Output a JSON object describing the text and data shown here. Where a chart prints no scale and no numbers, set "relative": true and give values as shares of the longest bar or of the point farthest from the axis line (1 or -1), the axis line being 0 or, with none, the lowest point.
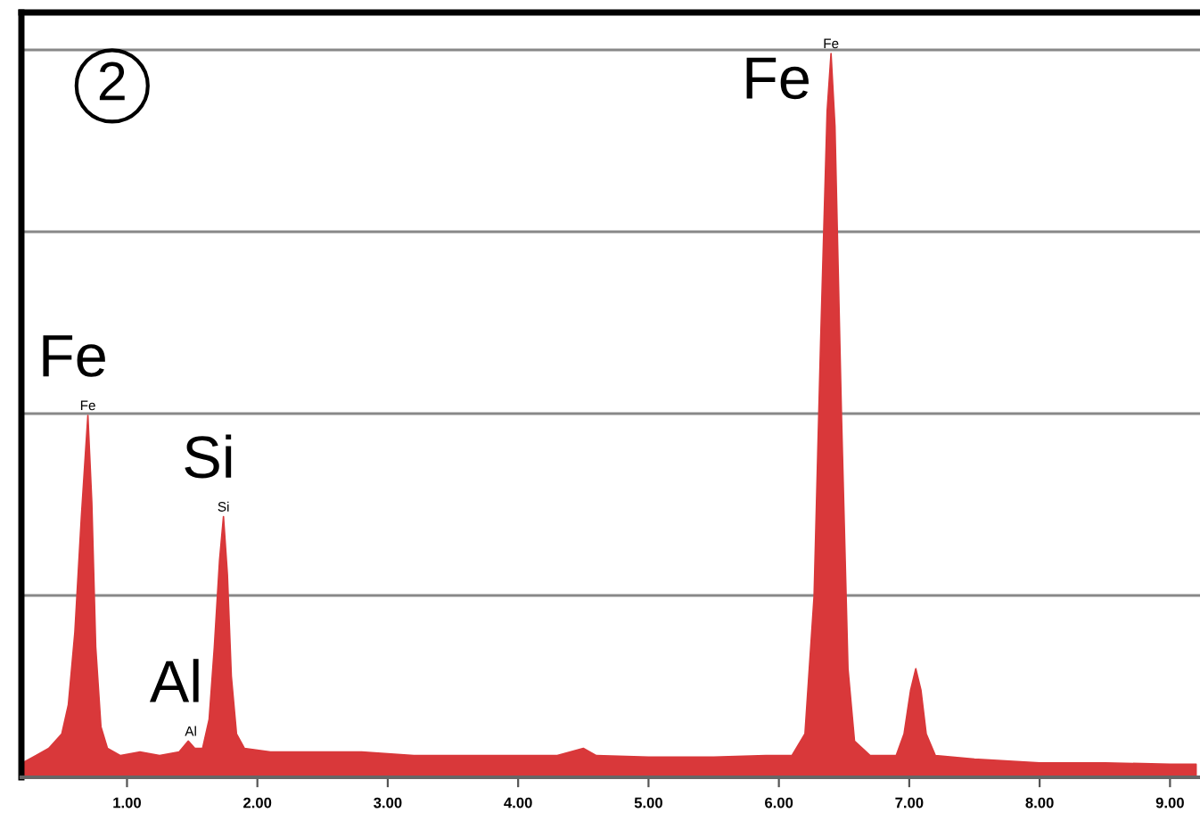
{
  "chart_data": {
    "type": "area",
    "relative": true,
    "color": "#d9383a",
    "grid": "y",
    "x": [
      0.2,
      0.3,
      0.4,
      0.5,
      0.55,
      0.6,
      0.65,
      0.7,
      0.73,
      0.76,
      0.8,
      0.85,
      0.95,
      1.1,
      1.25,
      1.4,
      1.47,
      1.52,
      1.58,
      1.63,
      1.67,
      1.71,
      1.74,
      1.77,
      1.8,
      1.84,
      1.9,
      2.1,
      2.4,
      2.8,
      3.2,
      3.6,
      4.0,
      4.3,
      4.5,
      4.6,
      5.0,
      5.5,
      5.9,
      6.1,
      6.2,
      6.27,
      6.32,
      6.37,
      6.4,
      6.43,
      6.48,
      6.53,
      6.58,
      6.7,
      6.9,
      6.96,
      7.01,
      7.05,
      7.09,
      7.13,
      7.2,
      7.5,
      8.0,
      8.5,
      9.0,
      9.2
    ],
    "values": [
      0.02,
      0.03,
      0.04,
      0.06,
      0.1,
      0.2,
      0.36,
      0.5,
      0.38,
      0.18,
      0.07,
      0.04,
      0.03,
      0.035,
      0.03,
      0.035,
      0.05,
      0.04,
      0.04,
      0.08,
      0.18,
      0.3,
      0.36,
      0.28,
      0.14,
      0.06,
      0.04,
      0.035,
      0.035,
      0.035,
      0.03,
      0.03,
      0.03,
      0.03,
      0.04,
      0.03,
      0.028,
      0.028,
      0.03,
      0.03,
      0.06,
      0.25,
      0.6,
      0.92,
      1.0,
      0.9,
      0.5,
      0.15,
      0.05,
      0.03,
      0.03,
      0.06,
      0.12,
      0.15,
      0.12,
      0.06,
      0.03,
      0.025,
      0.02,
      0.02,
      0.018,
      0.018
    ],
    "xlim": [
      0.19,
      9.23
    ],
    "xticks": [
      {
        "value": 1,
        "label": "1.00"
      },
      {
        "value": 2,
        "label": "2.00"
      },
      {
        "value": 3,
        "label": "3.00"
      },
      {
        "value": 4,
        "label": "4.00"
      },
      {
        "value": 5,
        "label": "5.00"
      },
      {
        "value": 6,
        "label": "6.00"
      },
      {
        "value": 7,
        "label": "7.00"
      },
      {
        "value": 8,
        "label": "8.00"
      },
      {
        "value": 9,
        "label": "9.00"
      }
    ],
    "annotations": [
      "2",
      {
        "text": "Fe",
        "x": 0.7,
        "y": 0.5
      },
      {
        "text": "Fe",
        "x": 0.7,
        "y": 0.5
      },
      {
        "text": "Al",
        "x": 1.49,
        "y": 0.05
      },
      {
        "text": "Al",
        "x": 1.49,
        "y": 0.05
      },
      {
        "text": "Si",
        "x": 1.74,
        "y": 0.36
      },
      {
        "text": "Si",
        "x": 1.74,
        "y": 0.36
      },
      {
        "text": "Fe",
        "x": 6.4,
        "y": 1.0
      },
      {
        "text": "Fe",
        "x": 6.4,
        "y": 1.0
      }
    ]
  }
}
